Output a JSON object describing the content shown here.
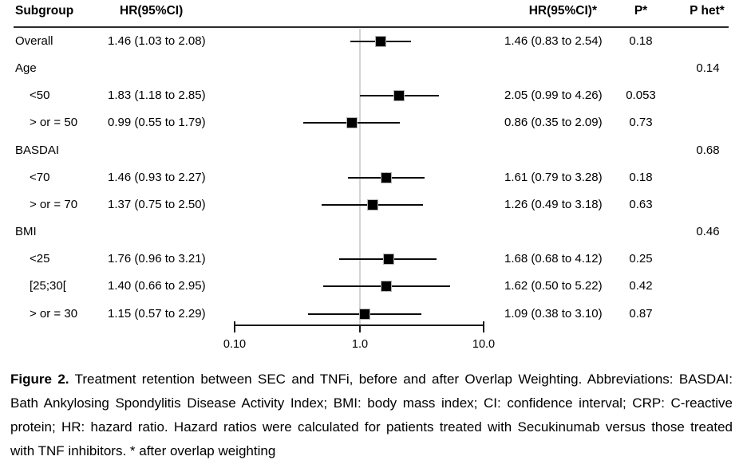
{
  "figure": {
    "columns": {
      "subgroup": "Subgroup",
      "hr": "HR(95%CI)",
      "hr_weighted": "HR(95%CI)*",
      "p": "P*",
      "p_het": "P het*"
    },
    "axis": {
      "scale": "log",
      "tick_labels": [
        "0.10",
        "1.0",
        "10.0"
      ],
      "reference_value": "1.0"
    },
    "caption": {
      "lines": [
        {
          "bold": "Figure 2.",
          "text": " Treatment retention between SEC and TNFi, before and after Overlap Weighting. Abbreviations: BASDAI:"
        },
        {
          "text": "Bath Ankylosing Spondylitis Disease Activity Index; BMI: body mass index; CI: confidence interval; CRP: C-reactive"
        },
        {
          "text": "protein; HR: hazard ratio. Hazard ratios were calculated for patients treated with Secukinumab versus those treated"
        },
        {
          "text": "with TNF inhibitors. * after overlap weighting",
          "last": true
        }
      ]
    },
    "colors": {
      "text": "#000000",
      "header_rule": "#2b2b2b",
      "ci_line": "#0a0a0a",
      "marker": "#000000",
      "reference_line": "#d4d4d4"
    }
  },
  "chart_data": {
    "type": "forest",
    "scale": "log",
    "x_ticks": [
      0.1,
      1.0,
      10.0
    ],
    "x_tick_labels": [
      "0.10",
      "1.0",
      "10.0"
    ],
    "x_range": [
      0.1,
      10.0
    ],
    "reference_line": 1.0,
    "plotted_series": "weighted",
    "rows": [
      {
        "subgroup": "Overall",
        "indent": false,
        "hr_text": "1.46 (1.03 to 2.08)",
        "hr": 1.46,
        "lo": 1.03,
        "hi": 2.08,
        "hr_w_text": "1.46 (0.83 to 2.54)",
        "hr_w": 1.46,
        "lo_w": 0.83,
        "hi_w": 2.54,
        "p": "0.18",
        "p_het": ""
      },
      {
        "subgroup": "Age",
        "indent": false,
        "hr_text": "",
        "hr_w_text": "",
        "p": "",
        "p_het": "0.14"
      },
      {
        "subgroup": "<50",
        "indent": true,
        "hr_text": "1.83 (1.18 to 2.85)",
        "hr": 1.83,
        "lo": 1.18,
        "hi": 2.85,
        "hr_w_text": "2.05 (0.99 to 4.26)",
        "hr_w": 2.05,
        "lo_w": 0.99,
        "hi_w": 4.26,
        "p": "0.053",
        "p_het": ""
      },
      {
        "subgroup": "> or = 50",
        "indent": true,
        "hr_text": "0.99 (0.55 to 1.79)",
        "hr": 0.99,
        "lo": 0.55,
        "hi": 1.79,
        "hr_w_text": "0.86 (0.35 to 2.09)",
        "hr_w": 0.86,
        "lo_w": 0.35,
        "hi_w": 2.09,
        "p": "0.73",
        "p_het": ""
      },
      {
        "subgroup": "BASDAI",
        "indent": false,
        "hr_text": "",
        "hr_w_text": "",
        "p": "",
        "p_het": "0.68"
      },
      {
        "subgroup": "<70",
        "indent": true,
        "hr_text": "1.46 (0.93 to 2.27)",
        "hr": 1.46,
        "lo": 0.93,
        "hi": 2.27,
        "hr_w_text": "1.61 (0.79 to 3.28)",
        "hr_w": 1.61,
        "lo_w": 0.79,
        "hi_w": 3.28,
        "p": "0.18",
        "p_het": ""
      },
      {
        "subgroup": "> or = 70",
        "indent": true,
        "hr_text": "1.37 (0.75 to 2.50)",
        "hr": 1.37,
        "lo": 0.75,
        "hi": 2.5,
        "hr_w_text": "1.26 (0.49 to 3.18)",
        "hr_w": 1.26,
        "lo_w": 0.49,
        "hi_w": 3.18,
        "p": "0.63",
        "p_het": ""
      },
      {
        "subgroup": "BMI",
        "indent": false,
        "hr_text": "",
        "hr_w_text": "",
        "p": "",
        "p_het": "0.46"
      },
      {
        "subgroup": "<25",
        "indent": true,
        "hr_text": "1.76 (0.96 to 3.21)",
        "hr": 1.76,
        "lo": 0.96,
        "hi": 3.21,
        "hr_w_text": "1.68 (0.68 to 4.12)",
        "hr_w": 1.68,
        "lo_w": 0.68,
        "hi_w": 4.12,
        "p": "0.25",
        "p_het": ""
      },
      {
        "subgroup": "[25;30[",
        "indent": true,
        "hr_text": "1.40 (0.66 to 2.95)",
        "hr": 1.4,
        "lo": 0.66,
        "hi": 2.95,
        "hr_w_text": "1.62 (0.50 to 5.22)",
        "hr_w": 1.62,
        "lo_w": 0.5,
        "hi_w": 5.22,
        "p": "0.42",
        "p_het": ""
      },
      {
        "subgroup": "> or = 30",
        "indent": true,
        "hr_text": "1.15 (0.57 to 2.29)",
        "hr": 1.15,
        "lo": 0.57,
        "hi": 2.29,
        "hr_w_text": "1.09 (0.38 to 3.10)",
        "hr_w": 1.09,
        "lo_w": 0.38,
        "hi_w": 3.1,
        "p": "0.87",
        "p_het": ""
      }
    ]
  }
}
